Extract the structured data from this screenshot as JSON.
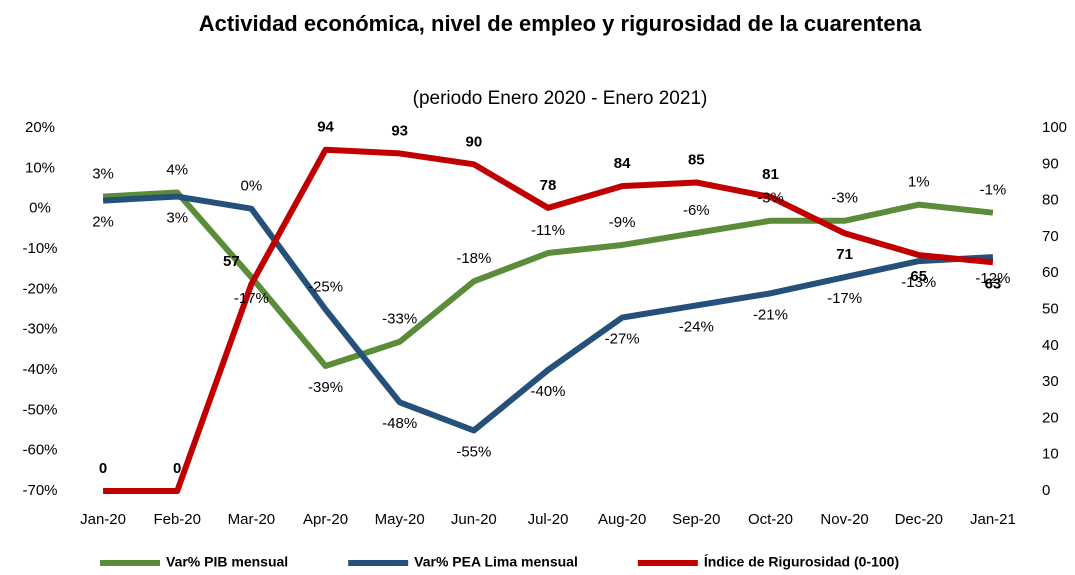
{
  "chart_data": {
    "type": "line",
    "title": "Actividad económica, nivel de empleo y rigurosidad de la cuarentena",
    "subtitle": "(periodo Enero 2020 - Enero 2021)",
    "categories": [
      "Jan-20",
      "Feb-20",
      "Mar-20",
      "Apr-20",
      "May-20",
      "Jun-20",
      "Jul-20",
      "Aug-20",
      "Sep-20",
      "Oct-20",
      "Nov-20",
      "Dec-20",
      "Jan-21"
    ],
    "series": [
      {
        "name": "Var% PIB mensual",
        "color": "#5b8c3a",
        "values": [
          3,
          4,
          -17,
          -39,
          -33,
          -18,
          -11,
          -9,
          -6,
          -3,
          -3,
          1,
          -1
        ],
        "value_labels": [
          "3%",
          "4%",
          "-17%",
          "-39%",
          "-33%",
          "-18%",
          "-11%",
          "-9%",
          "-6%",
          "-3%",
          "-3%",
          "1%",
          "-1%"
        ]
      },
      {
        "name": "Var% PEA Lima mensual",
        "color": "#24507a",
        "values": [
          2,
          3,
          0,
          -25,
          -48,
          -55,
          -40,
          -27,
          -24,
          -21,
          -17,
          -13,
          -12
        ],
        "value_labels": [
          "2%",
          "3%",
          "0%",
          "-25%",
          "-48%",
          "-55%",
          "-40%",
          "-27%",
          "-24%",
          "-21%",
          "-17%",
          "-13%",
          "-12%"
        ]
      },
      {
        "name": "Índice de Rigurosidad (0-100)",
        "color": "#c00000",
        "axis": "y2",
        "values": [
          0,
          0,
          57,
          94,
          93,
          90,
          78,
          84,
          85,
          81,
          71,
          65,
          63
        ]
      }
    ],
    "ylim": [
      -70,
      20
    ],
    "yticks": [
      {
        "value": -70,
        "label": "-70%"
      },
      {
        "value": -60,
        "label": "-60%"
      },
      {
        "value": -50,
        "label": "-50%"
      },
      {
        "value": -40,
        "label": "-40%"
      },
      {
        "value": -30,
        "label": "-30%"
      },
      {
        "value": -20,
        "label": "-20%"
      },
      {
        "value": -10,
        "label": "-10%"
      },
      {
        "value": 0,
        "label": "0%"
      },
      {
        "value": 10,
        "label": "10%"
      },
      {
        "value": 20,
        "label": "20%"
      }
    ],
    "y2lim": [
      0,
      100
    ],
    "y2ticks": [
      0,
      10,
      20,
      30,
      40,
      50,
      60,
      70,
      80,
      90,
      100
    ],
    "legend": "bottom",
    "grid": false
  }
}
